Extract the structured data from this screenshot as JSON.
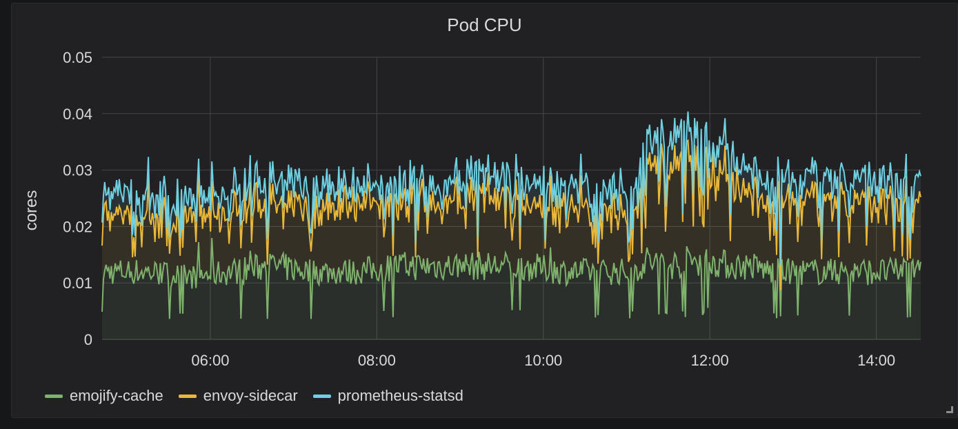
{
  "panel": {
    "title": "Pod CPU"
  },
  "chart_data": {
    "type": "area",
    "stacked": true,
    "title": "Pod CPU",
    "xlabel": "",
    "ylabel": "cores",
    "xlim": [
      "04:42",
      "14:32"
    ],
    "ylim": [
      0,
      0.05
    ],
    "yticks": [
      "0",
      "0.01",
      "0.02",
      "0.03",
      "0.04",
      "0.05"
    ],
    "xticks": [
      "06:00",
      "08:00",
      "10:00",
      "12:00",
      "14:00"
    ],
    "grid": true,
    "legend_position": "bottom",
    "x": [
      "04:45",
      "05:15",
      "05:45",
      "06:15",
      "06:45",
      "07:15",
      "07:45",
      "08:15",
      "08:45",
      "09:15",
      "09:45",
      "10:15",
      "10:45",
      "11:05",
      "11:15",
      "11:30",
      "11:45",
      "12:00",
      "12:15",
      "12:30",
      "12:45",
      "13:15",
      "13:45",
      "14:15",
      "14:30"
    ],
    "series": [
      {
        "name": "emojify-cache",
        "color": "#7eb26d",
        "values": [
          0.012,
          0.012,
          0.011,
          0.012,
          0.013,
          0.012,
          0.012,
          0.013,
          0.013,
          0.013,
          0.013,
          0.012,
          0.012,
          0.012,
          0.014,
          0.013,
          0.014,
          0.014,
          0.013,
          0.013,
          0.012,
          0.012,
          0.012,
          0.012,
          0.014
        ]
      },
      {
        "name": "envoy-sidecar",
        "color": "#eab839",
        "values": [
          0.01,
          0.01,
          0.01,
          0.011,
          0.011,
          0.011,
          0.012,
          0.011,
          0.011,
          0.013,
          0.011,
          0.011,
          0.011,
          0.011,
          0.016,
          0.017,
          0.019,
          0.017,
          0.016,
          0.012,
          0.012,
          0.012,
          0.012,
          0.011,
          0.012
        ]
      },
      {
        "name": "prometheus-statsd",
        "color": "#6ed0e0",
        "values": [
          0.004,
          0.004,
          0.003,
          0.004,
          0.004,
          0.004,
          0.003,
          0.003,
          0.003,
          0.004,
          0.004,
          0.004,
          0.004,
          0.004,
          0.005,
          0.005,
          0.005,
          0.005,
          0.005,
          0.004,
          0.004,
          0.004,
          0.004,
          0.004,
          0.004
        ]
      }
    ]
  }
}
